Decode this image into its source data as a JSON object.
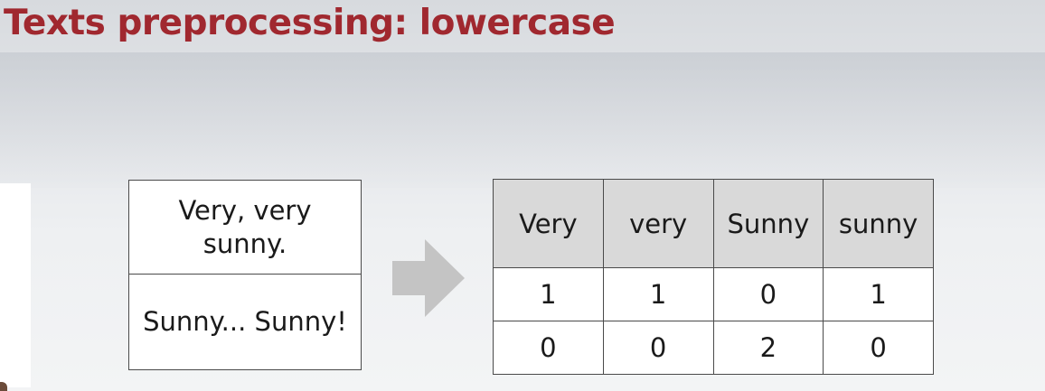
{
  "slide": {
    "title": "Texts preprocessing: lowercase"
  },
  "texts": [
    {
      "line1": "Very, very",
      "line2": "sunny."
    },
    {
      "line1": "Sunny... Sunny!"
    }
  ],
  "matrix": {
    "headers": [
      "Very",
      "very",
      "Sunny",
      "sunny"
    ],
    "rows": [
      [
        "1",
        "1",
        "0",
        "1"
      ],
      [
        "0",
        "0",
        "2",
        "0"
      ]
    ]
  },
  "colors": {
    "title": "#a0282f",
    "header_fill": "#d9d9d9",
    "arrow": "#c4c4c4"
  },
  "icons": {
    "arrow": "arrow-right-icon"
  }
}
